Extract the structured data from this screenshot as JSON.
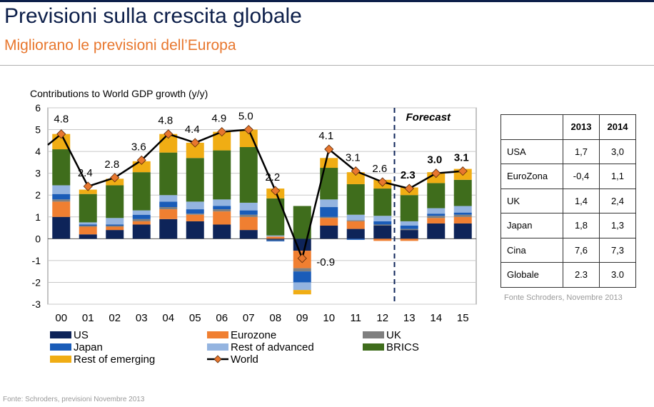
{
  "header": {
    "title": "Previsioni sulla crescita globale",
    "subtitle": "Migliorano le previsioni dell’Europa"
  },
  "chart_data": {
    "type": "bar",
    "stacked": true,
    "title": "Contributions to World GDP growth (y/y)",
    "ylim": [
      -3,
      6
    ],
    "yticks": [
      "6",
      "5",
      "4",
      "3",
      "2",
      "1",
      "0",
      "-1",
      "-2",
      "-3"
    ],
    "grid": true,
    "categories": [
      "00",
      "01",
      "02",
      "03",
      "04",
      "05",
      "06",
      "07",
      "08",
      "09",
      "10",
      "11",
      "12",
      "13",
      "14",
      "15"
    ],
    "forecast_label": "Forecast",
    "forecast_start_index": 13,
    "series": [
      {
        "name": "US",
        "color": "#0e2459",
        "values": [
          1.0,
          0.2,
          0.4,
          0.65,
          0.9,
          0.8,
          0.65,
          0.4,
          -0.05,
          -0.55,
          0.6,
          0.45,
          0.6,
          0.4,
          0.7,
          0.7
        ]
      },
      {
        "name": "Eurozone",
        "color": "#f07f31",
        "values": [
          0.7,
          0.35,
          0.15,
          0.15,
          0.45,
          0.3,
          0.6,
          0.6,
          0.1,
          -0.8,
          0.35,
          0.35,
          -0.1,
          -0.1,
          0.25,
          0.3
        ]
      },
      {
        "name": "UK",
        "color": "#7f7f7f",
        "values": [
          0.1,
          0.05,
          0.05,
          0.1,
          0.1,
          0.05,
          0.1,
          0.1,
          -0.02,
          -0.15,
          0.05,
          0.05,
          0.05,
          0.05,
          0.1,
          0.1
        ]
      },
      {
        "name": "Japan",
        "color": "#1a5cb8",
        "values": [
          0.25,
          0.05,
          0.05,
          0.2,
          0.25,
          0.2,
          0.15,
          0.2,
          -0.05,
          -0.5,
          0.45,
          -0.05,
          0.15,
          0.15,
          0.1,
          0.1
        ]
      },
      {
        "name": "Rest of advanced",
        "color": "#94b4e0",
        "values": [
          0.4,
          0.1,
          0.3,
          0.2,
          0.3,
          0.35,
          0.3,
          0.35,
          0.05,
          -0.35,
          0.35,
          0.25,
          0.25,
          0.2,
          0.25,
          0.3
        ]
      },
      {
        "name": "BRICS",
        "color": "#3f6d1c",
        "values": [
          1.65,
          1.3,
          1.5,
          1.75,
          1.95,
          2.0,
          2.25,
          2.55,
          1.7,
          1.5,
          1.45,
          1.4,
          1.25,
          1.2,
          1.15,
          1.2
        ]
      },
      {
        "name": "Rest of emerging",
        "color": "#f0ad14",
        "values": [
          0.7,
          0.2,
          0.3,
          0.5,
          0.85,
          0.7,
          0.85,
          0.8,
          0.45,
          -0.2,
          0.45,
          0.55,
          0.4,
          0.35,
          0.5,
          0.5
        ]
      }
    ],
    "world": {
      "name": "World",
      "color": "#000000",
      "marker_color": "#e8772e",
      "values": [
        4.8,
        2.4,
        2.8,
        3.6,
        4.8,
        4.4,
        4.9,
        5.0,
        2.2,
        -0.9,
        4.1,
        3.1,
        2.6,
        2.3,
        3.0,
        3.1
      ],
      "labels": [
        "4.8",
        "2.4",
        "2.8",
        "3.6",
        "4.8",
        "4.4",
        "4.9",
        "5.0",
        "2.2",
        "-0.9",
        "4.1",
        "3.1",
        "2.6",
        "2.3",
        "3.0",
        "3.1"
      ],
      "bold_from_index": 13,
      "line_starts_at_left_edge_value": 4.3
    },
    "legend_order": [
      "US",
      "Eurozone",
      "UK",
      "Japan",
      "Rest of advanced",
      "BRICS",
      "Rest of emerging",
      "World"
    ]
  },
  "table": {
    "headers": [
      "",
      "2013",
      "2014"
    ],
    "rows": [
      {
        "country": "USA",
        "v2013": "1,7",
        "v2014": "3,0"
      },
      {
        "country": "EuroZona",
        "v2013": "-0,4",
        "v2014": "1,1"
      },
      {
        "country": "UK",
        "v2013": "1,4",
        "v2014": "2,4"
      },
      {
        "country": "Japan",
        "v2013": "1,8",
        "v2014": "1,3"
      },
      {
        "country": "Cina",
        "v2013": "7,6",
        "v2014": "7,3"
      },
      {
        "country": "Globale",
        "v2013": "2.3",
        "v2014": "3.0"
      }
    ],
    "source": "Fonte Schroders, Novembre 2013"
  },
  "footer": {
    "source": "Fonte: Schroders, previsioni Novembre 2013"
  }
}
